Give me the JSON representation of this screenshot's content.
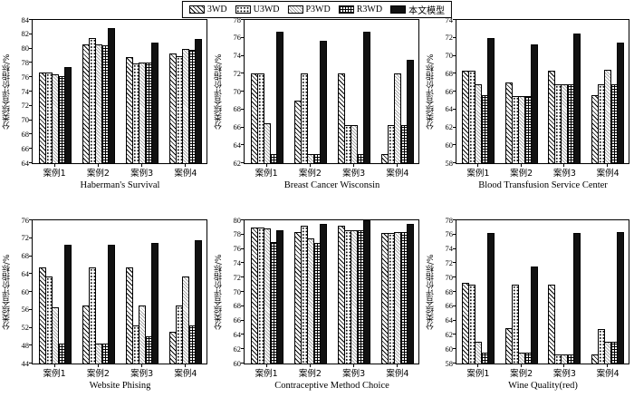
{
  "legend": {
    "position": "top",
    "items": [
      {
        "label": "3WD",
        "pattern": "diagonal-hatch"
      },
      {
        "label": "U3WD",
        "pattern": "dots"
      },
      {
        "label": "P3WD",
        "pattern": "light-diagonal-hatch"
      },
      {
        "label": "R3WD",
        "pattern": "checkerboard"
      },
      {
        "label": "本文模型",
        "pattern": "solid-black"
      }
    ]
  },
  "axes": {
    "ylabel": "分类综合评价指标/%",
    "categories": [
      "案例1",
      "案例2",
      "案例3",
      "案例4"
    ],
    "grid": false
  },
  "colors": {
    "bar_outline": "#000000",
    "solid_fill": "#111111",
    "background": "#ffffff"
  },
  "chart_data": [
    {
      "type": "bar",
      "title": "Haberman's Survival",
      "xlabel": "",
      "ylabel": "分类综合评价指标/%",
      "ylim": [
        64,
        84
      ],
      "ytick_step": 2,
      "categories": [
        "案例1",
        "案例2",
        "案例3",
        "案例4"
      ],
      "series": [
        {
          "name": "3WD",
          "values": [
            76.6,
            80.6,
            78.8,
            79.3
          ]
        },
        {
          "name": "U3WD",
          "values": [
            76.6,
            81.5,
            77.9,
            79.0
          ]
        },
        {
          "name": "P3WD",
          "values": [
            76.4,
            80.6,
            78.0,
            79.9
          ]
        },
        {
          "name": "R3WD",
          "values": [
            76.1,
            80.4,
            78.0,
            79.8
          ]
        },
        {
          "name": "本文模型",
          "values": [
            77.4,
            82.8,
            80.8,
            81.4
          ]
        }
      ]
    },
    {
      "type": "bar",
      "title": "Breast Cancer Wisconsin",
      "xlabel": "",
      "ylabel": "分类综合评价指标/%",
      "ylim": [
        62,
        78
      ],
      "ytick_step": 2,
      "categories": [
        "案例1",
        "案例2",
        "案例3",
        "案例4"
      ],
      "series": [
        {
          "name": "3WD",
          "values": [
            72.0,
            69.0,
            72.0,
            63.0
          ]
        },
        {
          "name": "U3WD",
          "values": [
            72.0,
            72.0,
            66.3,
            66.3
          ]
        },
        {
          "name": "P3WD",
          "values": [
            66.5,
            63.0,
            66.3,
            72.0
          ]
        },
        {
          "name": "R3WD",
          "values": [
            63.0,
            63.0,
            63.0,
            66.3
          ]
        },
        {
          "name": "本文模型",
          "values": [
            76.7,
            75.7,
            76.7,
            73.5
          ]
        }
      ]
    },
    {
      "type": "bar",
      "title": "Blood Transfusion Service Center",
      "xlabel": "",
      "ylabel": "分类综合评价指标/%",
      "ylim": [
        58,
        74
      ],
      "ytick_step": 2,
      "categories": [
        "案例1",
        "案例2",
        "案例3",
        "案例4"
      ],
      "series": [
        {
          "name": "3WD",
          "values": [
            68.3,
            67.0,
            68.3,
            65.6
          ]
        },
        {
          "name": "U3WD",
          "values": [
            68.3,
            65.5,
            66.8,
            66.8
          ]
        },
        {
          "name": "P3WD",
          "values": [
            66.8,
            65.5,
            66.8,
            68.4
          ]
        },
        {
          "name": "R3WD",
          "values": [
            65.6,
            65.5,
            66.8,
            66.8
          ]
        },
        {
          "name": "本文模型",
          "values": [
            72.0,
            71.3,
            72.5,
            71.5
          ]
        }
      ]
    },
    {
      "type": "bar",
      "title": "Website Phising",
      "xlabel": "",
      "ylabel": "分类综合评价指标/%",
      "ylim": [
        44,
        76
      ],
      "ytick_step": 4,
      "categories": [
        "案例1",
        "案例2",
        "案例3",
        "案例4"
      ],
      "series": [
        {
          "name": "3WD",
          "values": [
            65.5,
            57.0,
            65.5,
            51.0
          ]
        },
        {
          "name": "U3WD",
          "values": [
            63.5,
            65.5,
            52.5,
            57.0
          ]
        },
        {
          "name": "P3WD",
          "values": [
            56.5,
            48.5,
            57.0,
            63.5
          ]
        },
        {
          "name": "R3WD",
          "values": [
            48.5,
            48.5,
            50.0,
            52.5
          ]
        },
        {
          "name": "本文模型",
          "values": [
            70.5,
            70.5,
            71.0,
            71.5
          ]
        }
      ]
    },
    {
      "type": "bar",
      "title": "Contraceptive Method Choice",
      "xlabel": "",
      "ylabel": "分类综合评价指标/%",
      "ylim": [
        60,
        80
      ],
      "ytick_step": 2,
      "categories": [
        "案例1",
        "案例2",
        "案例3",
        "案例4"
      ],
      "series": [
        {
          "name": "3WD",
          "values": [
            79.0,
            78.3,
            79.2,
            78.2
          ]
        },
        {
          "name": "U3WD",
          "values": [
            79.0,
            79.3,
            78.6,
            78.2
          ]
        },
        {
          "name": "P3WD",
          "values": [
            78.8,
            77.5,
            78.6,
            78.3
          ]
        },
        {
          "name": "R3WD",
          "values": [
            77.0,
            76.8,
            78.6,
            78.3
          ]
        },
        {
          "name": "本文模型",
          "values": [
            78.6,
            79.5,
            80.0,
            79.5
          ]
        }
      ]
    },
    {
      "type": "bar",
      "title": "Wine Quality(red)",
      "xlabel": "",
      "ylabel": "分类综合评价指标/%",
      "ylim": [
        58,
        78
      ],
      "ytick_step": 2,
      "categories": [
        "案例1",
        "案例2",
        "案例3",
        "案例4"
      ],
      "series": [
        {
          "name": "3WD",
          "values": [
            69.3,
            63.0,
            69.0,
            59.3
          ]
        },
        {
          "name": "U3WD",
          "values": [
            69.0,
            69.0,
            59.3,
            62.8
          ]
        },
        {
          "name": "P3WD",
          "values": [
            61.0,
            59.5,
            59.3,
            61.0
          ]
        },
        {
          "name": "R3WD",
          "values": [
            59.5,
            59.5,
            59.3,
            61.0
          ]
        },
        {
          "name": "本文模型",
          "values": [
            76.2,
            71.5,
            76.2,
            76.3
          ]
        }
      ]
    }
  ]
}
